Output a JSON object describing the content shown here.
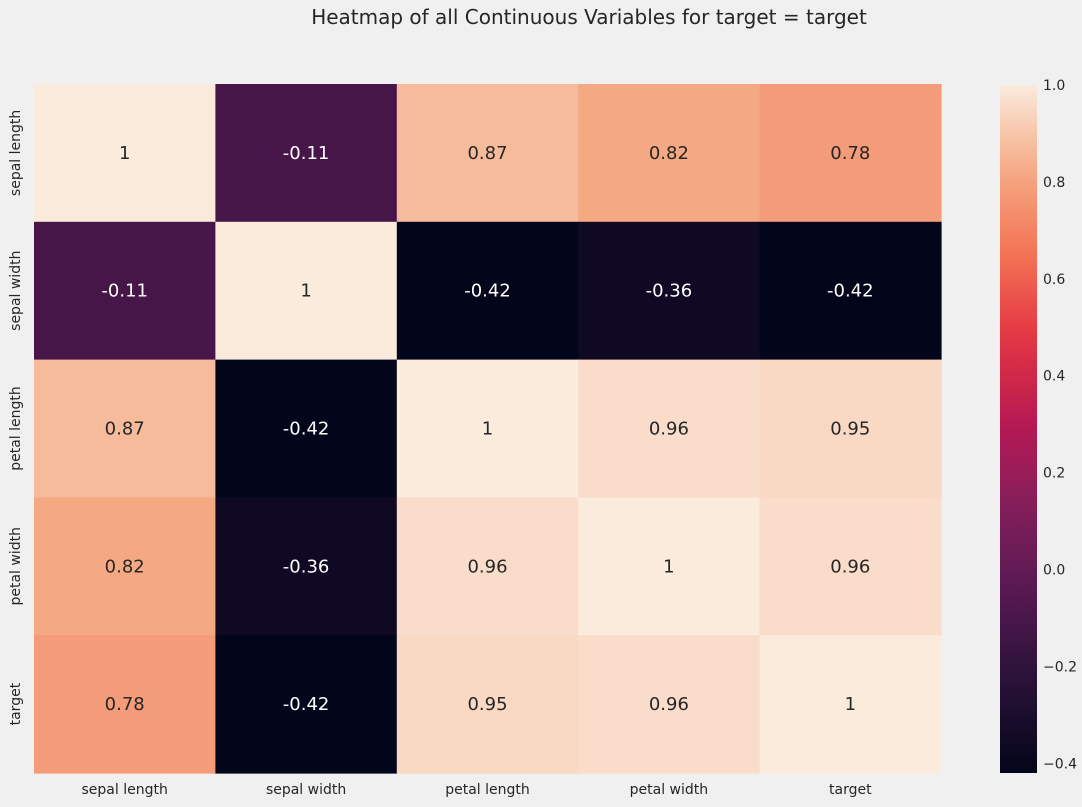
{
  "chart_data": {
    "type": "heatmap",
    "title": "Heatmap of all Continuous Variables for target = target",
    "x_categories": [
      "sepal length",
      "sepal width",
      "petal length",
      "petal width",
      "target"
    ],
    "y_categories": [
      "sepal length",
      "sepal width",
      "petal length",
      "petal width",
      "target"
    ],
    "values": [
      [
        1,
        -0.11,
        0.87,
        0.82,
        0.78
      ],
      [
        -0.11,
        1,
        -0.42,
        -0.36,
        -0.42
      ],
      [
        0.87,
        -0.42,
        1,
        0.96,
        0.95
      ],
      [
        0.82,
        -0.36,
        0.96,
        1,
        0.96
      ],
      [
        0.78,
        -0.42,
        0.95,
        0.96,
        1
      ]
    ],
    "annotations": [
      [
        "1",
        "-0.11",
        "0.87",
        "0.82",
        "0.78"
      ],
      [
        "-0.11",
        "1",
        "-0.42",
        "-0.36",
        "-0.42"
      ],
      [
        "0.87",
        "-0.42",
        "1",
        "0.96",
        "0.95"
      ],
      [
        "0.82",
        "-0.36",
        "0.96",
        "1",
        "0.96"
      ],
      [
        "0.78",
        "-0.42",
        "0.95",
        "0.96",
        "1"
      ]
    ],
    "colorbar": {
      "colormap": "rocket",
      "vmin": -0.42,
      "vmax": 1,
      "ticks": [
        -0.4,
        -0.2,
        0.0,
        0.2,
        0.4,
        0.6,
        0.8,
        1.0
      ],
      "tick_labels": [
        "−0.4",
        "−0.2",
        "0.0",
        "0.2",
        "0.4",
        "0.6",
        "0.8",
        "1.0"
      ]
    },
    "background_color": "#f0f0f0"
  }
}
